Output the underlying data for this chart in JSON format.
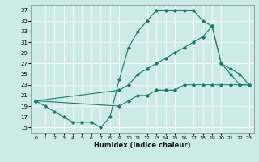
{
  "xlabel": "Humidex (Indice chaleur)",
  "bg_color": "#cceae8",
  "line_color": "#1a7a6e",
  "grid_color": "#ffffff",
  "xlim": [
    -0.5,
    23.5
  ],
  "ylim": [
    14,
    38
  ],
  "yticks": [
    15,
    17,
    19,
    21,
    23,
    25,
    27,
    29,
    31,
    33,
    35,
    37
  ],
  "xticks": [
    0,
    1,
    2,
    3,
    4,
    5,
    6,
    7,
    8,
    9,
    10,
    11,
    12,
    13,
    14,
    15,
    16,
    17,
    18,
    19,
    20,
    21,
    22,
    23
  ],
  "series": [
    {
      "x": [
        0,
        1,
        2,
        3,
        4,
        5,
        6,
        7,
        8,
        9,
        10,
        11,
        12,
        13,
        14,
        15,
        16,
        17,
        18,
        19,
        20,
        21,
        22,
        23
      ],
      "y": [
        20,
        19,
        18,
        17,
        16,
        16,
        16,
        15,
        17,
        24,
        30,
        33,
        35,
        37,
        37,
        37,
        37,
        37,
        35,
        34,
        27,
        25,
        23,
        23
      ]
    },
    {
      "x": [
        0,
        9,
        10,
        11,
        12,
        13,
        14,
        15,
        16,
        17,
        18,
        19,
        20,
        21,
        22,
        23
      ],
      "y": [
        20,
        22,
        23,
        25,
        26,
        27,
        28,
        29,
        30,
        31,
        32,
        34,
        27,
        26,
        25,
        23
      ]
    },
    {
      "x": [
        0,
        9,
        10,
        11,
        12,
        13,
        14,
        15,
        16,
        17,
        18,
        19,
        20,
        21,
        22,
        23
      ],
      "y": [
        20,
        19,
        20,
        21,
        21,
        22,
        22,
        22,
        23,
        23,
        23,
        23,
        23,
        23,
        23,
        23
      ]
    }
  ]
}
